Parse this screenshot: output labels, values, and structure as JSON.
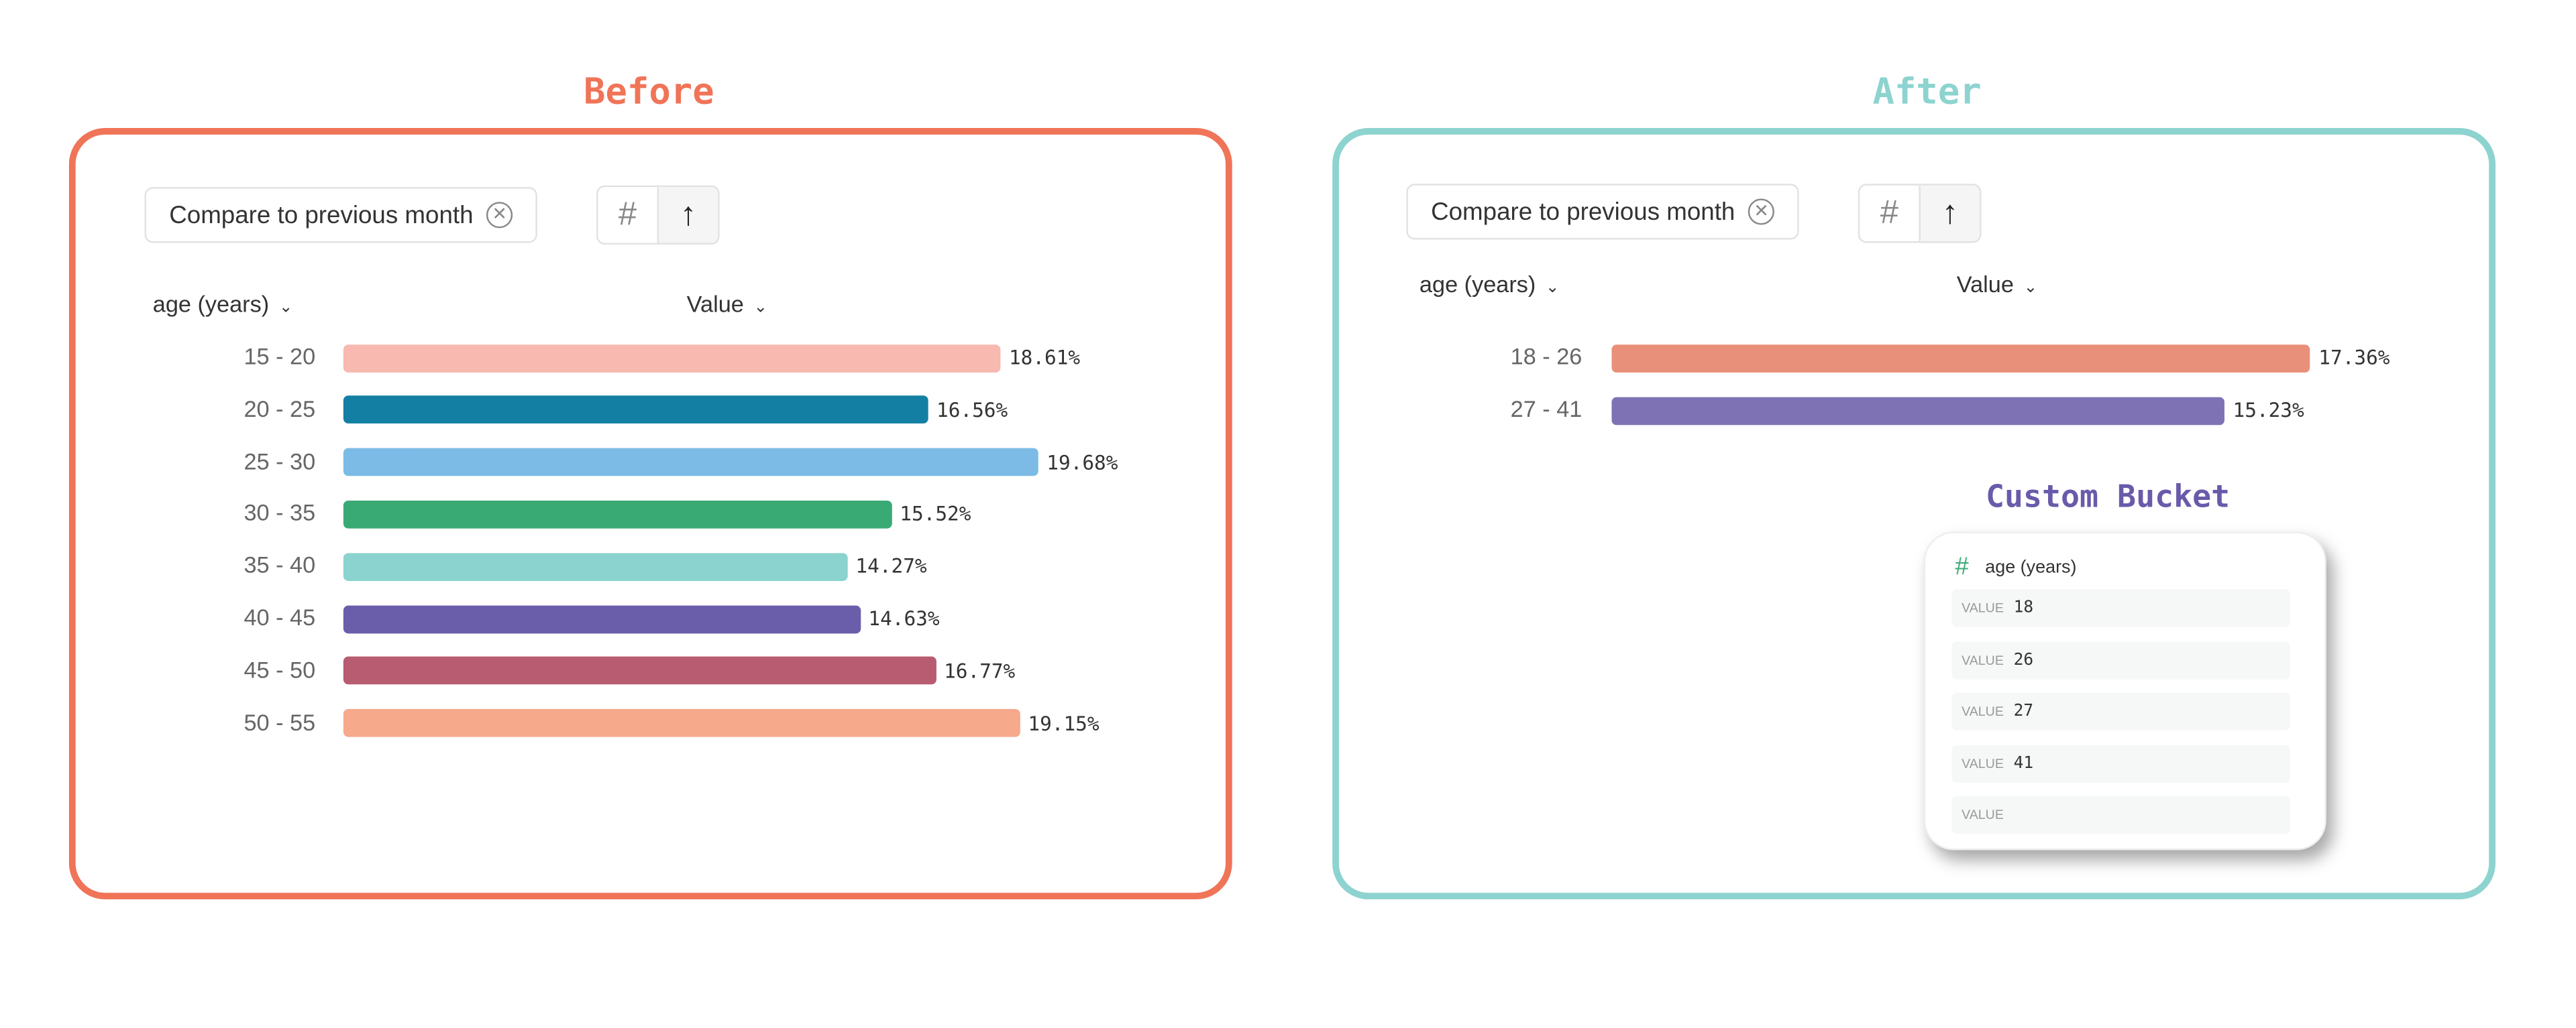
{
  "before": {
    "title": "Before",
    "accent": "#f07458",
    "compare_chip": "Compare to previous month",
    "col_dimension": "age (years)",
    "col_value": "Value",
    "rows": [
      {
        "label": "15 - 20",
        "value": 18.61,
        "text": "18.61%",
        "color": "#f8b9b0"
      },
      {
        "label": "20 - 25",
        "value": 16.56,
        "text": "16.56%",
        "color": "#1380a3"
      },
      {
        "label": "25 - 30",
        "value": 19.68,
        "text": "19.68%",
        "color": "#7bbbe6"
      },
      {
        "label": "30 - 35",
        "value": 15.52,
        "text": "15.52%",
        "color": "#3aaa74"
      },
      {
        "label": "35 - 40",
        "value": 14.27,
        "text": "14.27%",
        "color": "#8ad3cf"
      },
      {
        "label": "40 - 45",
        "value": 14.63,
        "text": "14.63%",
        "color": "#6a5eaa"
      },
      {
        "label": "45 - 50",
        "value": 16.77,
        "text": "16.77%",
        "color": "#b85c71"
      },
      {
        "label": "50 - 55",
        "value": 19.15,
        "text": "19.15%",
        "color": "#f7a98b"
      }
    ]
  },
  "after": {
    "title": "After",
    "accent": "#8dd3cf",
    "compare_chip": "Compare to previous month",
    "col_dimension": "age (years)",
    "col_value": "Value",
    "rows": [
      {
        "label": "18 - 26",
        "value": 17.36,
        "text": "17.36%",
        "color": "#e8907a"
      },
      {
        "label": "27 - 41",
        "value": 15.23,
        "text": "15.23%",
        "color": "#7f72b4"
      }
    ],
    "custom_bucket": {
      "title": "Custom Bucket",
      "title_color": "#6a5aaa",
      "property": "age (years)",
      "field_label": "VALUE",
      "values": [
        "18",
        "26",
        "27",
        "41",
        ""
      ]
    }
  }
}
